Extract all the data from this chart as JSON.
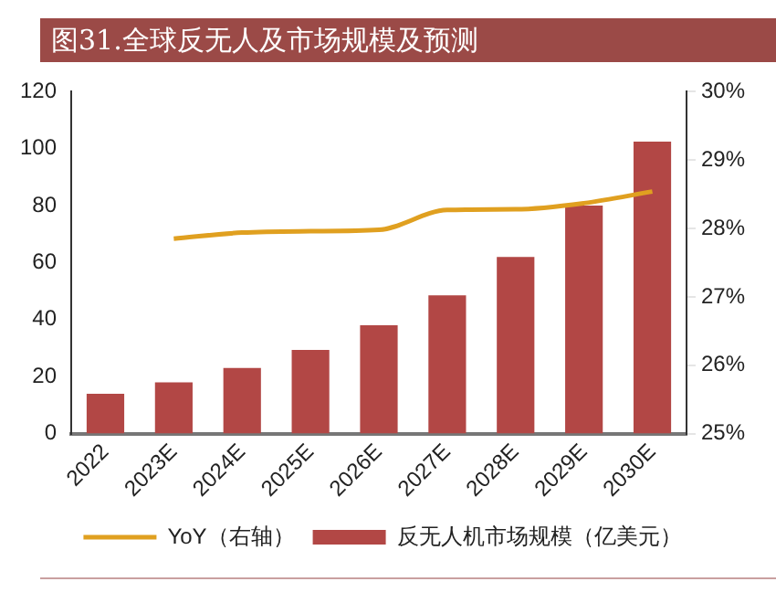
{
  "chart_data": {
    "type": "bar",
    "title": "图31.全球反无人及市场规模及预测",
    "categories": [
      "2022",
      "2023E",
      "2024E",
      "2025E",
      "2026E",
      "2027E",
      "2028E",
      "2029E",
      "2030E"
    ],
    "series": [
      {
        "name": "反无人机市场规模（亿美元）",
        "color": "#b24745",
        "values": [
          14,
          18,
          23,
          29.4,
          38,
          48.5,
          62,
          80,
          102.5
        ]
      },
      {
        "name": "YoY（右轴）",
        "type": "line",
        "axis": "y2",
        "color": "#e0a020",
        "values": [
          null,
          27.85,
          27.94,
          27.96,
          27.98,
          28.27,
          28.28,
          28.37,
          28.54
        ]
      }
    ],
    "ylim": [
      0,
      120
    ],
    "yticks": [
      0,
      20,
      40,
      60,
      80,
      100,
      120
    ],
    "y2lim": [
      25,
      30
    ],
    "y2ticks": [
      {
        "value": 25,
        "label": "25%"
      },
      {
        "value": 26,
        "label": "26%"
      },
      {
        "value": 27,
        "label": "27%"
      },
      {
        "value": 28,
        "label": "28%"
      },
      {
        "value": 29,
        "label": "29%"
      },
      {
        "value": 30,
        "label": "30%"
      }
    ],
    "grid": false,
    "legend": "bottom",
    "marker": "none",
    "line_style": "solid"
  }
}
